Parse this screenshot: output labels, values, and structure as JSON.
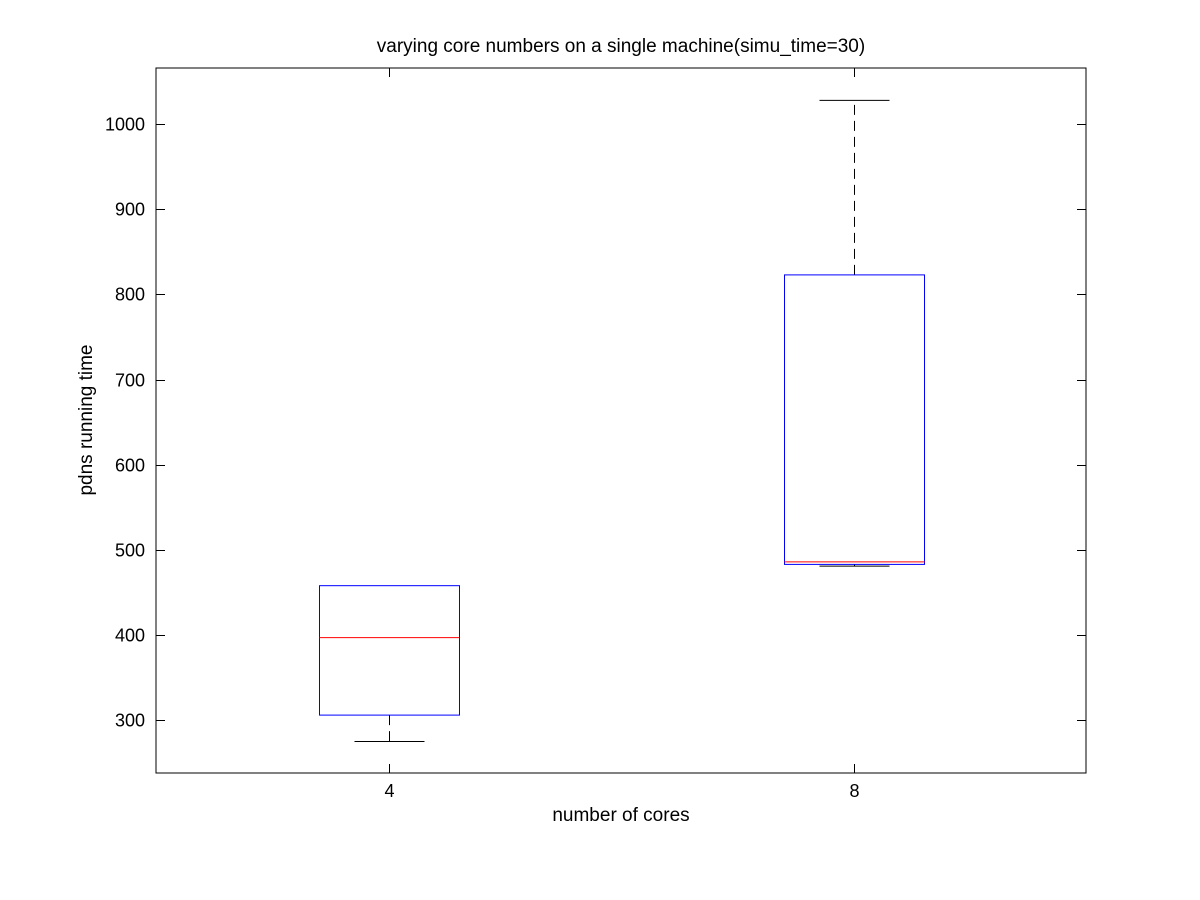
{
  "chart_data": {
    "type": "box",
    "title": "varying core numbers on a single machine(simu_time=30)",
    "xlabel": "number of cores",
    "ylabel": "pdns running time",
    "categories": [
      "4",
      "8"
    ],
    "ylim": [
      238,
      1066
    ],
    "yticks": [
      300,
      400,
      500,
      600,
      700,
      800,
      900,
      1000
    ],
    "ytick_labels": [
      "300",
      "400",
      "500",
      "600",
      "700",
      "800",
      "900",
      "1000"
    ],
    "grid": false,
    "boxes": [
      {
        "category": "4",
        "min": 275,
        "q1": 306,
        "median": 397,
        "q3": 458,
        "max": 458
      },
      {
        "category": "8",
        "min": 481,
        "q1": 483,
        "median": 486,
        "q3": 823,
        "max": 1028
      }
    ],
    "colors": {
      "box": "#0000ff",
      "median": "#ff0000",
      "whisker": "#000000",
      "axes": "#000000"
    }
  }
}
